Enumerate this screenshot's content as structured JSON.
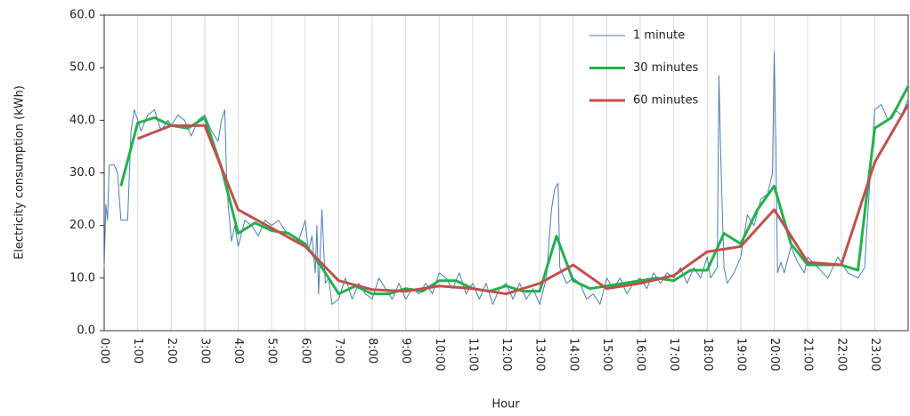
{
  "chart_data": {
    "type": "line",
    "ylabel": "Electricity consumption (kWh)",
    "xlabel": "Hour",
    "xlim": [
      0,
      24
    ],
    "ylim": [
      0,
      60
    ],
    "yticks": [
      {
        "value": 0,
        "label": "0.0"
      },
      {
        "value": 10,
        "label": "10.0"
      },
      {
        "value": 20,
        "label": "20.0"
      },
      {
        "value": 30,
        "label": "30.0"
      },
      {
        "value": 40,
        "label": "40.0"
      },
      {
        "value": 50,
        "label": "50.0"
      },
      {
        "value": 60,
        "label": "60.0"
      }
    ],
    "xticks": [
      {
        "value": 0,
        "label": "0:00"
      },
      {
        "value": 1,
        "label": "1:00"
      },
      {
        "value": 2,
        "label": "2:00"
      },
      {
        "value": 3,
        "label": "3:00"
      },
      {
        "value": 4,
        "label": "4:00"
      },
      {
        "value": 5,
        "label": "5:00"
      },
      {
        "value": 6,
        "label": "6:00"
      },
      {
        "value": 7,
        "label": "7:00"
      },
      {
        "value": 8,
        "label": "8:00"
      },
      {
        "value": 9,
        "label": "9:00"
      },
      {
        "value": 10,
        "label": "10:00"
      },
      {
        "value": 11,
        "label": "11:00"
      },
      {
        "value": 12,
        "label": "12:00"
      },
      {
        "value": 13,
        "label": "13:00"
      },
      {
        "value": 14,
        "label": "14:00"
      },
      {
        "value": 15,
        "label": "15:00"
      },
      {
        "value": 16,
        "label": "16:00"
      },
      {
        "value": 17,
        "label": "17:00"
      },
      {
        "value": 18,
        "label": "18:00"
      },
      {
        "value": 19,
        "label": "19:00"
      },
      {
        "value": 20,
        "label": "20:00"
      },
      {
        "value": 21,
        "label": "21:00"
      },
      {
        "value": 22,
        "label": "22:00"
      },
      {
        "value": 23,
        "label": "23:00"
      }
    ],
    "grid": "x",
    "legend": "upper right",
    "series": [
      {
        "name": "1 minute",
        "color": "#4a7ebb",
        "width": 1,
        "x": [
          0,
          0.05,
          0.1,
          0.15,
          0.3,
          0.4,
          0.5,
          0.7,
          0.8,
          0.9,
          1.0,
          1.1,
          1.3,
          1.5,
          1.7,
          1.9,
          2.0,
          2.2,
          2.4,
          2.6,
          2.8,
          3.0,
          3.2,
          3.4,
          3.5,
          3.6,
          3.65,
          3.7,
          3.8,
          3.9,
          4.0,
          4.2,
          4.4,
          4.6,
          4.8,
          5.0,
          5.2,
          5.4,
          5.6,
          5.8,
          6.0,
          6.1,
          6.2,
          6.3,
          6.35,
          6.4,
          6.5,
          6.6,
          6.7,
          6.8,
          7.0,
          7.2,
          7.4,
          7.6,
          7.8,
          8.0,
          8.2,
          8.4,
          8.6,
          8.8,
          9.0,
          9.2,
          9.4,
          9.6,
          9.8,
          10.0,
          10.2,
          10.4,
          10.6,
          10.8,
          11.0,
          11.2,
          11.4,
          11.6,
          11.8,
          12.0,
          12.2,
          12.4,
          12.6,
          12.8,
          13.0,
          13.2,
          13.35,
          13.45,
          13.55,
          13.6,
          13.8,
          14.0,
          14.2,
          14.4,
          14.6,
          14.8,
          15.0,
          15.2,
          15.4,
          15.6,
          15.8,
          16.0,
          16.2,
          16.4,
          16.6,
          16.8,
          17.0,
          17.2,
          17.4,
          17.6,
          17.8,
          18.0,
          18.1,
          18.3,
          18.35,
          18.4,
          18.5,
          18.6,
          18.8,
          19.0,
          19.2,
          19.4,
          19.6,
          19.8,
          19.95,
          20.0,
          20.05,
          20.1,
          20.2,
          20.3,
          20.5,
          20.7,
          20.9,
          21.0,
          21.3,
          21.6,
          21.9,
          22.0,
          22.2,
          22.5,
          22.7,
          22.8,
          23.0,
          23.2,
          23.4,
          23.6,
          23.8,
          24.0
        ],
        "values": [
          12,
          24,
          21,
          31.5,
          31.5,
          30,
          21,
          21,
          38,
          42,
          40,
          38,
          41,
          42,
          38,
          40,
          39,
          41,
          40,
          37,
          40,
          41,
          38,
          36,
          40,
          42,
          30,
          24,
          17,
          20,
          16,
          21,
          20,
          18,
          21,
          20,
          21,
          19,
          18,
          17,
          21,
          15,
          18,
          11,
          20,
          7,
          23,
          9,
          10,
          5,
          6,
          10,
          6,
          9,
          7,
          6,
          10,
          8,
          6,
          9,
          6,
          8,
          7,
          9,
          7,
          11,
          10,
          8,
          11,
          7,
          9,
          6,
          9,
          5,
          8,
          9,
          6,
          9,
          6,
          8,
          5,
          10,
          23,
          27,
          28,
          12,
          9,
          10,
          9,
          6,
          7,
          5,
          10,
          8,
          10,
          7,
          9,
          10,
          8,
          11,
          9,
          11,
          10,
          12,
          9,
          12,
          10,
          14,
          10,
          12,
          48.5,
          34,
          12,
          9,
          11,
          14,
          22,
          20,
          25,
          26,
          30,
          53,
          35,
          11,
          13,
          11,
          16,
          13,
          11,
          14,
          12,
          10,
          14,
          13,
          11,
          10,
          12,
          23,
          42,
          43,
          40,
          42,
          41,
          44
        ]
      },
      {
        "name": "30 minutes",
        "color": "#22b14c",
        "width": 3,
        "x": [
          0.5,
          1,
          1.5,
          2,
          2.5,
          3,
          3.5,
          4,
          4.5,
          5,
          5.5,
          6,
          6.5,
          7,
          7.5,
          8,
          8.5,
          9,
          9.5,
          10,
          10.5,
          11,
          11.5,
          12,
          12.5,
          13,
          13.5,
          14,
          14.5,
          15,
          15.5,
          16,
          16.5,
          17,
          17.5,
          18,
          18.5,
          19,
          19.5,
          20,
          20.5,
          21,
          21.5,
          22,
          22.5,
          23,
          23.5,
          24
        ],
        "values": [
          27.5,
          39.5,
          40.5,
          39,
          38.5,
          40.5,
          31,
          18.5,
          20.5,
          19,
          18.5,
          16.5,
          12,
          7,
          8.5,
          7,
          7,
          8,
          7.5,
          9.5,
          9.5,
          8,
          7.5,
          8.5,
          7.5,
          7.5,
          18,
          9.5,
          8,
          8.5,
          9,
          9.5,
          10,
          9.5,
          11.5,
          11.5,
          18.5,
          16.5,
          23,
          27.5,
          16.5,
          12.5,
          12.5,
          12.5,
          11.5,
          38.5,
          40.5,
          46.5
        ]
      },
      {
        "name": "60 minutes",
        "color": "#c0504d",
        "width": 3,
        "x": [
          1,
          2,
          3,
          4,
          5,
          6,
          7,
          8,
          9,
          10,
          11,
          12,
          13,
          14,
          15,
          16,
          17,
          18,
          19,
          20,
          21,
          22,
          23,
          24
        ],
        "values": [
          36.5,
          39,
          39,
          23,
          19.5,
          16,
          9.5,
          7.8,
          7.5,
          8.5,
          8,
          7,
          9,
          12.5,
          8,
          9,
          10.5,
          15,
          16,
          23,
          13,
          12.5,
          32,
          43
        ]
      }
    ]
  }
}
